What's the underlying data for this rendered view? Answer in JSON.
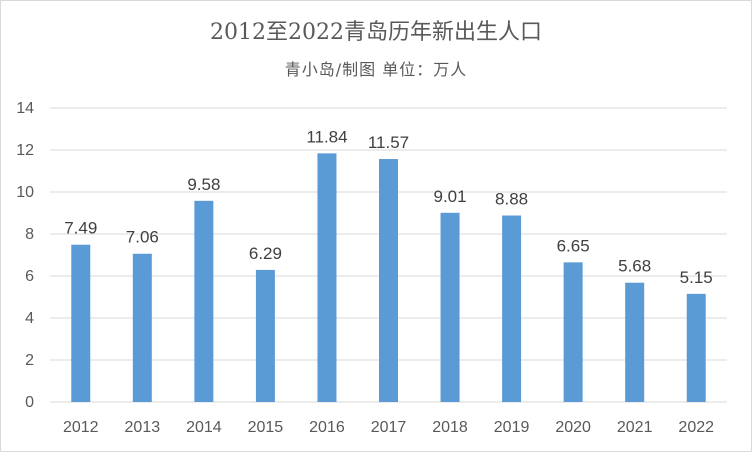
{
  "chart_data": {
    "type": "bar",
    "title": "2012至2022青岛历年新出生人口",
    "subtitle": "青小岛/制图 单位：万人",
    "xlabel": "",
    "ylabel": "",
    "categories": [
      "2012",
      "2013",
      "2014",
      "2015",
      "2016",
      "2017",
      "2018",
      "2019",
      "2020",
      "2021",
      "2022"
    ],
    "values": [
      7.49,
      7.06,
      9.58,
      6.29,
      11.84,
      11.57,
      9.01,
      8.88,
      6.65,
      5.68,
      5.15
    ],
    "value_labels": [
      "7.49",
      "7.06",
      "9.58",
      "6.29",
      "11.84",
      "11.57",
      "9.01",
      "8.88",
      "6.65",
      "5.68",
      "5.15"
    ],
    "yticks": [
      "0",
      "2",
      "4",
      "6",
      "8",
      "10",
      "12",
      "14"
    ],
    "ylim": [
      0,
      14
    ],
    "grid": true,
    "legend": "none",
    "bar_color": "#5b9bd5",
    "grid_color": "#d9d9d9"
  }
}
